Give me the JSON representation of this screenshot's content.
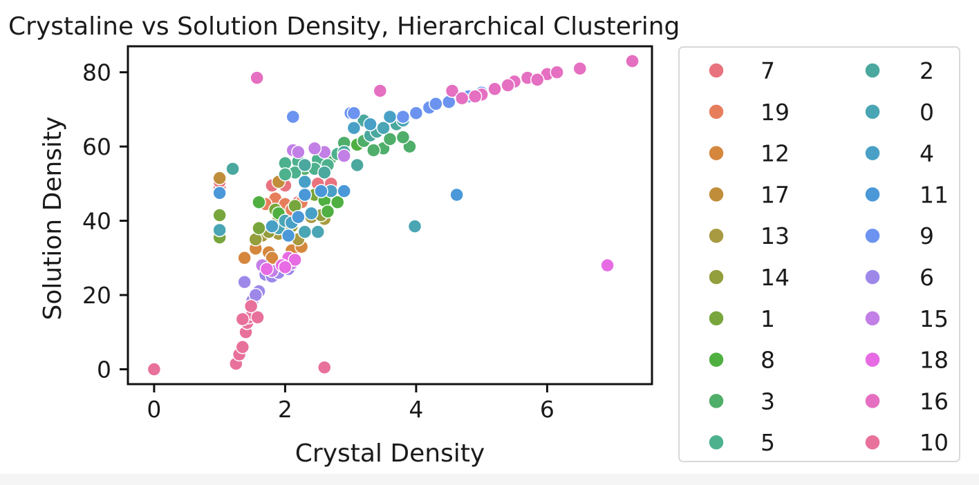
{
  "chart_data": {
    "type": "scatter",
    "title": "Crystaline vs Solution Density, Hierarchical Clustering",
    "xlabel": "Crystal Density",
    "ylabel": "Solution Density",
    "xlim": [
      -0.4,
      7.6
    ],
    "ylim": [
      -4,
      87
    ],
    "xticks": [
      0,
      2,
      4,
      6
    ],
    "yticks": [
      0,
      20,
      40,
      60,
      80
    ],
    "grid": false,
    "legend_position": "outside-right",
    "series": [
      {
        "name": "7",
        "color": "#e8737f",
        "points": [
          [
            1.0,
            49
          ],
          [
            1.0,
            50.5
          ],
          [
            1.8,
            49.5
          ],
          [
            2.0,
            49.5
          ],
          [
            2.2,
            45
          ],
          [
            2.5,
            50
          ],
          [
            1.9,
            44
          ],
          [
            2.7,
            50
          ]
        ]
      },
      {
        "name": "19",
        "color": "#e67e5c",
        "points": [
          [
            1.85,
            46
          ],
          [
            2.0,
            44.5
          ],
          [
            2.25,
            45
          ],
          [
            1.7,
            44.5
          ],
          [
            2.1,
            43
          ]
        ]
      },
      {
        "name": "12",
        "color": "#d5873e",
        "points": [
          [
            1.38,
            30
          ],
          [
            1.55,
            32.5
          ],
          [
            1.75,
            31.5
          ],
          [
            2.1,
            32
          ],
          [
            2.25,
            33
          ],
          [
            1.8,
            30
          ]
        ]
      },
      {
        "name": "17",
        "color": "#c08e3a",
        "points": [
          [
            1.0,
            51.5
          ],
          [
            1.9,
            50.5
          ],
          [
            2.3,
            50.5
          ],
          [
            1.8,
            38
          ],
          [
            2.05,
            37
          ]
        ]
      },
      {
        "name": "13",
        "color": "#a89a40",
        "points": [
          [
            1.65,
            36
          ],
          [
            2.0,
            40
          ],
          [
            2.4,
            41
          ],
          [
            2.6,
            40.5
          ],
          [
            1.9,
            36.5
          ],
          [
            2.2,
            35
          ]
        ]
      },
      {
        "name": "14",
        "color": "#939e3c",
        "points": [
          [
            1.55,
            35
          ],
          [
            1.75,
            37
          ],
          [
            2.1,
            38.5
          ],
          [
            2.55,
            41.5
          ],
          [
            1.9,
            41
          ]
        ]
      },
      {
        "name": "1",
        "color": "#78a63c",
        "points": [
          [
            1.0,
            41.5
          ],
          [
            1.0,
            35.5
          ],
          [
            1.85,
            43
          ],
          [
            2.15,
            44
          ],
          [
            2.45,
            47
          ],
          [
            1.6,
            38
          ]
        ]
      },
      {
        "name": "8",
        "color": "#4fb041",
        "points": [
          [
            1.6,
            45
          ],
          [
            1.9,
            42
          ],
          [
            2.6,
            45.5
          ],
          [
            2.8,
            45
          ],
          [
            3.1,
            60.5
          ],
          [
            2.65,
            42.5
          ]
        ]
      },
      {
        "name": "3",
        "color": "#4fae6a",
        "points": [
          [
            2.9,
            61
          ],
          [
            3.2,
            61.5
          ],
          [
            3.5,
            59.5
          ],
          [
            3.9,
            60
          ],
          [
            3.6,
            62
          ],
          [
            3.35,
            59
          ],
          [
            3.8,
            62.5
          ],
          [
            2.3,
            54
          ],
          [
            2.7,
            57
          ]
        ]
      },
      {
        "name": "5",
        "color": "#4db18e",
        "points": [
          [
            2.0,
            55.5
          ],
          [
            2.2,
            56
          ],
          [
            2.5,
            56.5
          ],
          [
            2.8,
            58
          ],
          [
            2.15,
            53
          ],
          [
            2.45,
            54
          ],
          [
            2.0,
            52.5
          ],
          [
            2.65,
            55
          ]
        ]
      },
      {
        "name": "2",
        "color": "#4aa89f",
        "points": [
          [
            1.2,
            54
          ],
          [
            2.3,
            55
          ],
          [
            2.6,
            53
          ],
          [
            3.1,
            55
          ],
          [
            3.3,
            63
          ],
          [
            3.7,
            66
          ],
          [
            3.4,
            64
          ],
          [
            3.2,
            67
          ],
          [
            2.9,
            58.5
          ]
        ]
      },
      {
        "name": "0",
        "color": "#4aa5b4",
        "points": [
          [
            3.98,
            38.5
          ],
          [
            1.0,
            37.5
          ],
          [
            1.9,
            38
          ],
          [
            2.3,
            37
          ],
          [
            2.5,
            37
          ],
          [
            3.5,
            65
          ],
          [
            3.8,
            67
          ],
          [
            2.0,
            40
          ]
        ]
      },
      {
        "name": "4",
        "color": "#48a0c6",
        "points": [
          [
            1.8,
            38.5
          ],
          [
            2.1,
            39.5
          ],
          [
            2.4,
            42
          ],
          [
            2.7,
            48
          ],
          [
            3.05,
            65
          ],
          [
            3.3,
            66
          ],
          [
            3.6,
            68
          ],
          [
            2.3,
            50.5
          ]
        ]
      },
      {
        "name": "11",
        "color": "#4a98d8",
        "points": [
          [
            4.62,
            47
          ],
          [
            1.0,
            47.5
          ],
          [
            2.55,
            48
          ],
          [
            2.9,
            48
          ],
          [
            2.2,
            41
          ],
          [
            2.3,
            47
          ],
          [
            2.05,
            36
          ]
        ]
      },
      {
        "name": "9",
        "color": "#6b93ef",
        "points": [
          [
            2.12,
            68
          ],
          [
            3.0,
            69
          ],
          [
            3.05,
            69
          ],
          [
            4.0,
            69
          ],
          [
            4.2,
            70.5
          ],
          [
            4.5,
            72
          ],
          [
            4.8,
            73.5
          ],
          [
            5.0,
            74.5
          ],
          [
            3.8,
            68
          ],
          [
            4.3,
            71.5
          ]
        ]
      },
      {
        "name": "6",
        "color": "#9d88ea",
        "points": [
          [
            1.38,
            23.5
          ],
          [
            1.5,
            18.5
          ],
          [
            1.6,
            21
          ],
          [
            1.7,
            25.5
          ],
          [
            1.8,
            25
          ],
          [
            1.9,
            26
          ],
          [
            2.05,
            27
          ],
          [
            1.55,
            20
          ]
        ]
      },
      {
        "name": "15",
        "color": "#c27fe6",
        "points": [
          [
            2.12,
            59
          ],
          [
            2.2,
            58.5
          ],
          [
            2.6,
            58.5
          ],
          [
            2.9,
            57.5
          ],
          [
            1.8,
            26.5
          ],
          [
            2.1,
            28.5
          ],
          [
            1.65,
            28
          ],
          [
            2.45,
            59.5
          ]
        ]
      },
      {
        "name": "18",
        "color": "#e76be3",
        "points": [
          [
            6.92,
            28
          ],
          [
            2.05,
            30
          ],
          [
            1.95,
            28
          ],
          [
            2.15,
            29.5
          ],
          [
            1.72,
            27
          ],
          [
            2.0,
            27.5
          ]
        ]
      },
      {
        "name": "16",
        "color": "#e56fc1",
        "points": [
          [
            1.57,
            78.5
          ],
          [
            3.45,
            75
          ],
          [
            4.55,
            75
          ],
          [
            4.7,
            73
          ],
          [
            5.0,
            74
          ],
          [
            5.2,
            75.5
          ],
          [
            5.5,
            77.5
          ],
          [
            5.7,
            78.5
          ],
          [
            6.0,
            79.5
          ],
          [
            6.15,
            80
          ],
          [
            6.5,
            81
          ],
          [
            7.3,
            83
          ],
          [
            4.9,
            73.5
          ],
          [
            5.4,
            76.5
          ],
          [
            5.85,
            78
          ]
        ]
      },
      {
        "name": "10",
        "color": "#e8719b",
        "points": [
          [
            0.0,
            0
          ],
          [
            2.6,
            0.5
          ],
          [
            1.25,
            1.5
          ],
          [
            1.3,
            4
          ],
          [
            1.35,
            6
          ],
          [
            1.4,
            10
          ],
          [
            1.42,
            12.5
          ],
          [
            1.45,
            14
          ],
          [
            1.5,
            15
          ],
          [
            1.58,
            14
          ],
          [
            1.48,
            17
          ],
          [
            1.35,
            13.5
          ]
        ]
      }
    ]
  }
}
